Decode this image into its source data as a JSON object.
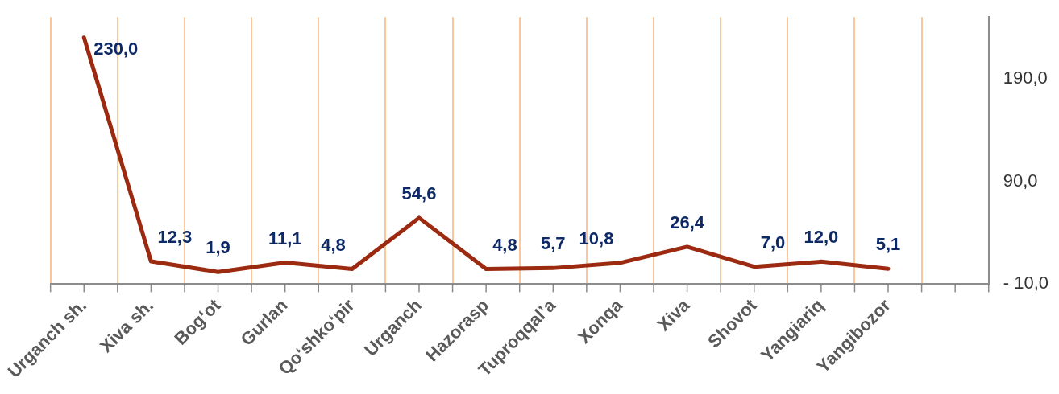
{
  "chart_data": {
    "type": "line",
    "categories": [
      "Urganch sh.",
      "Xiva sh.",
      "Bog‘ot",
      "Gurlan",
      "Qo‘shko‘pir",
      "Urganch",
      "Hazorasp",
      "Tuproqqal’a",
      "Xonqa",
      "Xiva",
      "Shovot",
      "Yangiariq",
      "Yangibozor",
      null
    ],
    "series": [
      {
        "color": "#9b2a10",
        "values": [
          230.0,
          12.3,
          1.9,
          11.1,
          4.8,
          54.6,
          4.8,
          5.7,
          10.8,
          26.4,
          7.0,
          12.0,
          5.1,
          null
        ],
        "value_labels": [
          "230,0",
          "12,3",
          "1,9",
          "11,1",
          "4,8",
          "54,6",
          "4,8",
          "5,7",
          "10,8",
          "26,4",
          "7,0",
          "12,0",
          "5,1",
          null
        ]
      }
    ],
    "ylim": [
      -10,
      250
    ],
    "yticks": [
      {
        "value": -10,
        "label": "- 10,0"
      },
      {
        "value": 90,
        "label": "90,0"
      },
      {
        "value": 190,
        "label": "190,0"
      }
    ],
    "grid": "x",
    "legend": false,
    "marker": "none",
    "line_style": "solid"
  }
}
